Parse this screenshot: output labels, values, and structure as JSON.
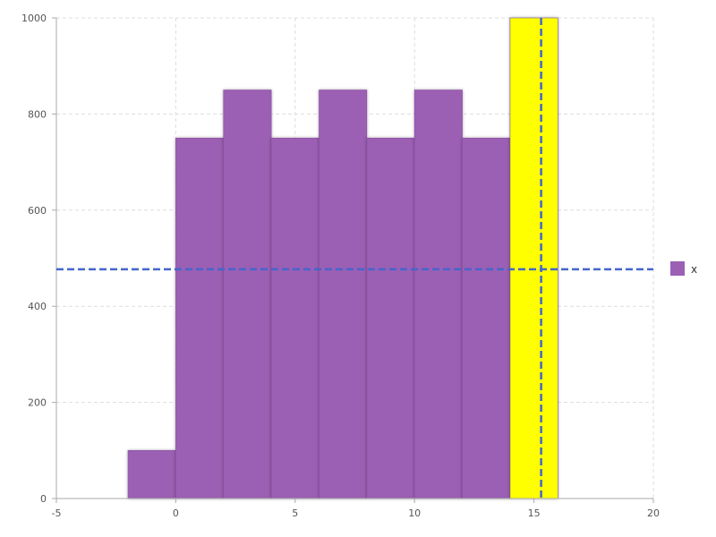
{
  "chart_data": {
    "type": "bar",
    "subtype": "histogram",
    "xlim": [
      -5,
      20
    ],
    "ylim": [
      0,
      1000
    ],
    "x_ticks": [
      "-5",
      "0",
      "5",
      "10",
      "15",
      "20"
    ],
    "y_ticks": [
      "0",
      "200",
      "400",
      "600",
      "800",
      "1000"
    ],
    "grid": true,
    "bins": [
      {
        "x0": -2,
        "x1": 0,
        "value": 100
      },
      {
        "x0": 0,
        "x1": 2,
        "value": 750
      },
      {
        "x0": 2,
        "x1": 4,
        "value": 850
      },
      {
        "x0": 4,
        "x1": 6,
        "value": 750
      },
      {
        "x0": 6,
        "x1": 8,
        "value": 850
      },
      {
        "x0": 8,
        "x1": 10,
        "value": 750
      },
      {
        "x0": 10,
        "x1": 12,
        "value": 850
      },
      {
        "x0": 12,
        "x1": 14,
        "value": 750
      },
      {
        "x0": 14,
        "x1": 16,
        "value": 1000,
        "highlighted": true
      }
    ],
    "reference_lines": {
      "horizontal_y": 477,
      "vertical_x": 15.3
    },
    "legend": {
      "placement": "right",
      "entries": [
        {
          "label": "x",
          "color": "#9b5fb4"
        }
      ]
    },
    "colors": {
      "bar": "#9b5fb4",
      "highlight": "#ffff00",
      "reference_line": "#4466cc",
      "grid": "#dddddd",
      "axis": "#aaaaaa"
    }
  }
}
